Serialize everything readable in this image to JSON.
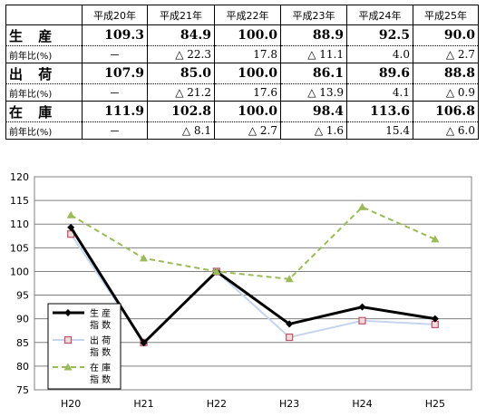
{
  "table": {
    "headers": [
      "",
      "平成20年",
      "平成21年",
      "平成22年",
      "平成23年",
      "平成24年",
      "平成25年"
    ],
    "rows": [
      {
        "label": "生 産",
        "values": [
          "109.3",
          "84.9",
          "100.0",
          "88.9",
          "92.5",
          "90.0"
        ],
        "sub_label": "前年比(%)",
        "sub_values": [
          "－",
          "△ 22.3",
          "17.8",
          "△ 11.1",
          "4.0",
          "△ 2.7"
        ]
      },
      {
        "label": "出 荷",
        "values": [
          "107.9",
          "85.0",
          "100.0",
          "86.1",
          "89.6",
          "88.8"
        ],
        "sub_label": "前年比(%)",
        "sub_values": [
          "－",
          "△ 21.2",
          "17.6",
          "△ 13.9",
          "4.1",
          "△ 0.9"
        ]
      },
      {
        "label": "在 庫",
        "values": [
          "111.9",
          "102.8",
          "100.0",
          "98.4",
          "113.6",
          "106.8"
        ],
        "sub_label": "前年比(%)",
        "sub_values": [
          "－",
          "△ 8.1",
          "△ 2.7",
          "△ 1.6",
          "15.4",
          "△ 6.0"
        ]
      }
    ]
  },
  "chart_data": {
    "type": "line",
    "categories": [
      "H20",
      "H21",
      "H22",
      "H23",
      "H24",
      "H25"
    ],
    "ylim": [
      75,
      120
    ],
    "yticks": [
      "75",
      "80",
      "85",
      "90",
      "95",
      "100",
      "105",
      "110",
      "115",
      "120"
    ],
    "grid": true,
    "legend_position": "bottom-left",
    "series": [
      {
        "name": "生産指数",
        "legend_lines": [
          "生 産",
          "指 数"
        ],
        "values": [
          109.3,
          84.9,
          100.0,
          88.9,
          92.5,
          90.0
        ],
        "color": "#000000",
        "marker": "diamond",
        "dash": false
      },
      {
        "name": "出荷指数",
        "legend_lines": [
          "出 荷",
          "指 数"
        ],
        "values": [
          107.9,
          85.0,
          100.0,
          86.1,
          89.6,
          88.8
        ],
        "color": "#c6d5ee",
        "marker_color": "#c0506a",
        "marker": "square",
        "dash": false
      },
      {
        "name": "在庫指数",
        "legend_lines": [
          "在 庫",
          "指 数"
        ],
        "values": [
          111.9,
          102.8,
          100.0,
          98.4,
          113.6,
          106.8
        ],
        "color": "#9bbb59",
        "marker": "triangle",
        "dash": true
      }
    ]
  }
}
